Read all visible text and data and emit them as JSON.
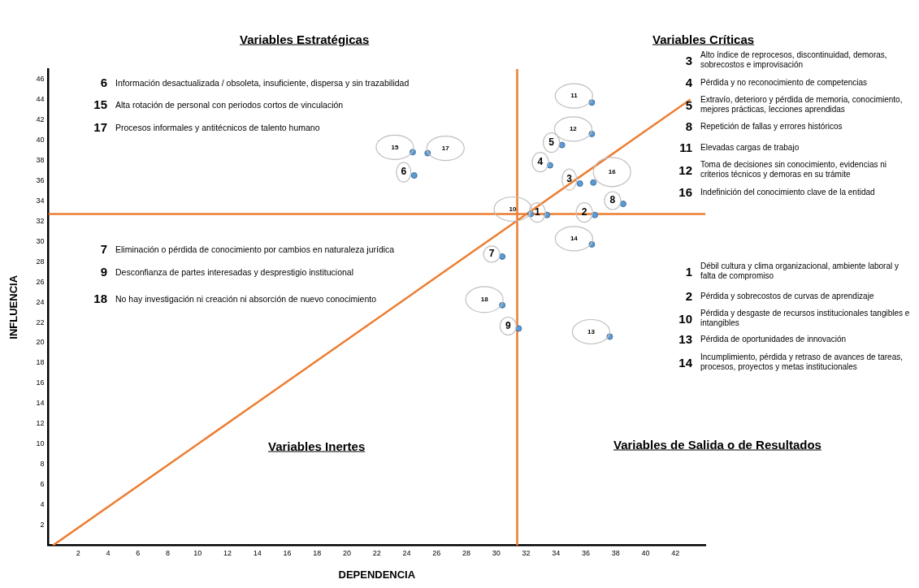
{
  "chart_data": {
    "type": "scatter",
    "xlabel": "DEPENDENCIA",
    "ylabel": "INFLUENCIA",
    "xlim": [
      0,
      44
    ],
    "ylim": [
      0,
      47
    ],
    "xticks": [
      2,
      4,
      6,
      8,
      10,
      12,
      14,
      16,
      18,
      20,
      22,
      24,
      26,
      28,
      30,
      32,
      34,
      36,
      38,
      40,
      42
    ],
    "yticks": [
      2,
      4,
      6,
      8,
      10,
      12,
      14,
      16,
      18,
      20,
      22,
      24,
      26,
      28,
      30,
      32,
      34,
      36,
      38,
      40,
      42,
      44,
      46
    ],
    "grid": false,
    "series": [
      {
        "type": "scatter",
        "color": "#5b9bd5",
        "marker": "circle",
        "x": [
          33.4,
          36.6,
          35.6,
          33.6,
          34.4,
          24.5,
          30.4,
          38.5,
          31.5,
          32.3,
          36.4,
          36.4,
          37.6,
          36.4,
          24.4,
          36.5,
          25.4,
          30.4
        ],
        "values": [
          32.6,
          32.6,
          35.7,
          37.5,
          39.5,
          36.5,
          28.5,
          33.7,
          21.4,
          32.7,
          43.7,
          40.6,
          20.6,
          29.7,
          38.8,
          35.8,
          38.7,
          23.7
        ]
      },
      {
        "type": "line",
        "color": "#ed7d31",
        "x": [
          0.3,
          43
        ],
        "values": [
          0,
          44
        ]
      }
    ],
    "ref_lines": [
      {
        "axis": "x",
        "value": 31.4,
        "color": "#ed7d31"
      },
      {
        "axis": "y",
        "value": 32.7,
        "color": "#ed7d31"
      }
    ],
    "annotations": [
      "Variables Estratégicas",
      "Variables Críticas",
      "Variables Inertes",
      "Variables de Salida o de Resultados",
      "6 Información desactualizada / obsoleta, insuficiente, dispersa y sin trazabilidad",
      "15 Alta rotación de personal con periodos cortos de vinculación",
      "17 Procesos informales y antitécnicos de talento humano",
      "7 Eliminación o pérdida de conocimiento por cambios en naturaleza jurídica",
      "9 Desconfianza de partes interesadas y desprestigio institucional",
      "18 No hay investigación ni creación ni absorción de nuevo conocimiento",
      "3 Alto índice de reprocesos, discontinuidad, demoras, sobrecostos e improvisación",
      "4 Pérdida y no reconocimiento de competencias",
      "5 Extravío, deterioro y pérdida de memoria, conocimiento, mejores prácticas, lecciones aprendidas",
      "8 Repetición de fallas y errores históricos",
      "11 Elevadas cargas de trabajo",
      "12 Toma de decisiones sin conocimiento, evidencias ni criterios técnicos y demoras en su trámite",
      "16 Indefinición del conocimiento clave de la entidad",
      "1 Débil cultura y clima organizacional, ambiente laboral y falta de compromiso",
      "2 Pérdida y sobrecostos de curvas de aprendizaje",
      "10 Pérdida y desgaste de recursos institucionales tangibles e intangibles",
      "13 Pérdida de oportunidades de innovación",
      "14 Incumplimiento, pérdida y retraso de avances de tareas, procesos, proyectos y metas institucionales",
      {
        "text": "1",
        "x": 33.4,
        "y": 32.6
      },
      {
        "text": "2",
        "x": 36.6,
        "y": 32.6
      },
      {
        "text": "3",
        "x": 35.6,
        "y": 35.7
      },
      {
        "text": "4",
        "x": 33.6,
        "y": 37.5
      },
      {
        "text": "5",
        "x": 34.4,
        "y": 39.5
      },
      {
        "text": "6",
        "x": 24.5,
        "y": 36.5
      },
      {
        "text": "7",
        "x": 30.4,
        "y": 28.5
      },
      {
        "text": "8",
        "x": 38.5,
        "y": 33.7
      },
      {
        "text": "9",
        "x": 31.5,
        "y": 21.4
      },
      {
        "text": "10",
        "x": 32.3,
        "y": 32.7
      },
      {
        "text": "11",
        "x": 36.4,
        "y": 43.7
      },
      {
        "text": "12",
        "x": 36.4,
        "y": 40.6
      },
      {
        "text": "13",
        "x": 37.6,
        "y": 20.6
      },
      {
        "text": "14",
        "x": 36.4,
        "y": 29.7
      },
      {
        "text": "15",
        "x": 24.4,
        "y": 38.8
      },
      {
        "text": "16",
        "x": 36.5,
        "y": 35.8
      },
      {
        "text": "17",
        "x": 25.4,
        "y": 38.7
      },
      {
        "text": "18",
        "x": 30.4,
        "y": 23.7
      }
    ]
  }
}
